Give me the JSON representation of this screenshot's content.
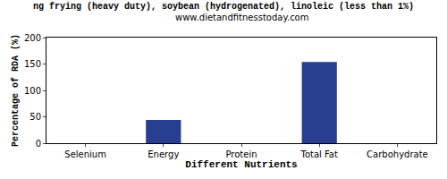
{
  "chart_data": {
    "type": "bar",
    "title": "ng frying (heavy duty), soybean (hydrogenated), linoleic (less than 1%)",
    "subtitle": "www.dietandfitnesstoday.com",
    "x_label": "Different Nutrients",
    "y_label": "Percentage of RDA (%)",
    "categories": [
      "Selenium",
      "Energy",
      "Protein",
      "Total Fat",
      "Carbohydrate"
    ],
    "values": [
      0,
      44,
      0,
      154,
      0
    ],
    "color": "#283f8f",
    "ylim": [
      0,
      200
    ],
    "yticks": [
      0,
      50,
      100,
      150,
      200
    ],
    "grid": false
  }
}
